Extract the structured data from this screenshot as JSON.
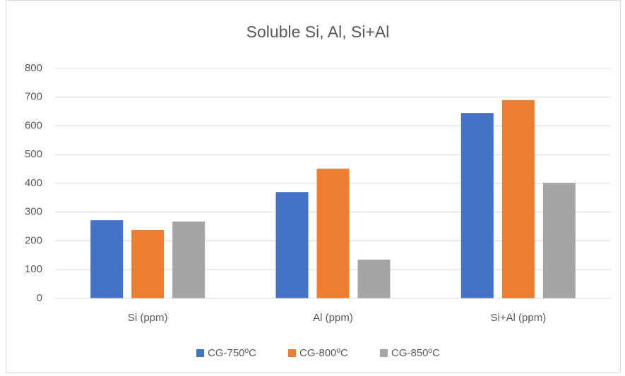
{
  "chart_data": {
    "type": "bar",
    "title": "Soluble Si, Al, Si+Al",
    "categories": [
      "Si (ppm)",
      "Al (ppm)",
      "Si+Al (ppm)"
    ],
    "series": [
      {
        "name": "CG-750ºC",
        "color": "#4472c4",
        "values": [
          272,
          370,
          645
        ]
      },
      {
        "name": "CG-800ºC",
        "color": "#ed7d31",
        "values": [
          238,
          451,
          690
        ]
      },
      {
        "name": "CG-850ºC",
        "color": "#a5a5a5",
        "values": [
          267,
          135,
          402
        ]
      }
    ],
    "ylim": [
      0,
      800
    ],
    "yticks": [
      0,
      100,
      200,
      300,
      400,
      500,
      600,
      700,
      800
    ],
    "grid": true,
    "legend": "bottom"
  }
}
